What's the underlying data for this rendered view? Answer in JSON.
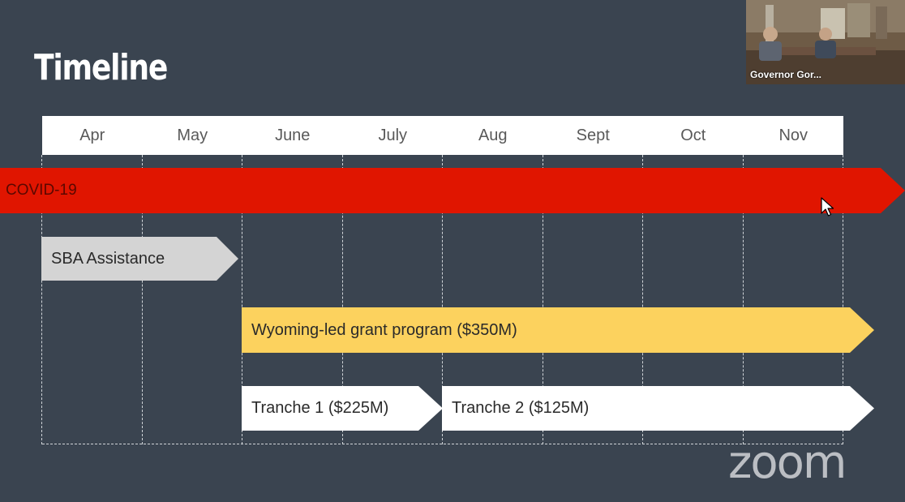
{
  "slide": {
    "title": "Timeline",
    "months": [
      "Apr",
      "May",
      "June",
      "July",
      "Aug",
      "Sept",
      "Oct",
      "Nov"
    ],
    "bars": {
      "covid": "COVID-19",
      "sba": "SBA Assistance",
      "grant": "Wyoming-led grant program ($350M)",
      "tranche1": "Tranche 1 ($225M)",
      "tranche2": "Tranche 2 ($125M)"
    }
  },
  "video": {
    "participant_name": "Governor Gor..."
  },
  "branding": {
    "logo_text": "zoom"
  },
  "colors": {
    "background": "#3a4450",
    "covid": "#e01500",
    "sba": "#d4d4d4",
    "grant": "#fcd25e",
    "tranche": "#ffffff"
  }
}
